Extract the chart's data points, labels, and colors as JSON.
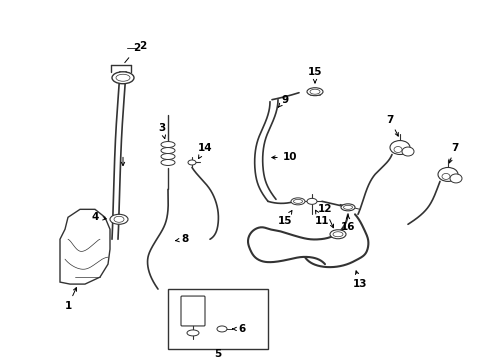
{
  "bg_color": "#ffffff",
  "line_color": "#333333",
  "text_color": "#000000",
  "label_fontsize": 7.5,
  "figsize": [
    4.89,
    3.6
  ],
  "dpi": 100
}
